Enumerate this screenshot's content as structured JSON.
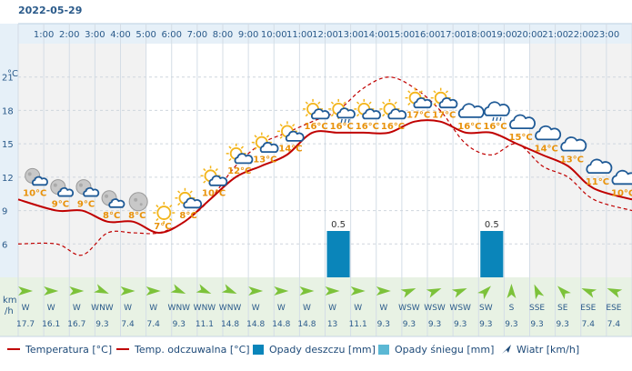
{
  "date": "2022-05-29",
  "colors": {
    "temperature": "#c00000",
    "feels_like": "#c00000",
    "rain": "#0a85ba",
    "snow": "#5bb8d4",
    "wind_arrow": "#7cc23a",
    "temp_label": "#e8920b",
    "plot_bg": "#f2f2f2",
    "header_bg": "#e6f0f8",
    "wind_bg": "#e8f2e4"
  },
  "chart_data": {
    "type": "line",
    "x_labels": [
      "1:00",
      "2:00",
      "3:00",
      "4:00",
      "5:00",
      "6:00",
      "7:00",
      "8:00",
      "9:00",
      "10:00",
      "11:00",
      "12:00",
      "13:00",
      "14:00",
      "15:00",
      "16:00",
      "17:00",
      "18:00",
      "19:00",
      "20:00",
      "21:00",
      "22:00",
      "23:00"
    ],
    "ylabel": "°C",
    "y_ticks": [
      21,
      18,
      15,
      12,
      9,
      6
    ],
    "ylim": [
      3,
      24
    ],
    "grid": true,
    "series": [
      {
        "name": "Temperatura [°C]",
        "style": "solid",
        "values": [
          10,
          9,
          9,
          8,
          8,
          7,
          8,
          10,
          12,
          13,
          14,
          16,
          16,
          16,
          16,
          17,
          17,
          16,
          16,
          15,
          14,
          13,
          11,
          10
        ]
      },
      {
        "name": "Temp. odczuwalna [°C]",
        "style": "dashed",
        "values": [
          6,
          6,
          5,
          7,
          7,
          7,
          8,
          10,
          13,
          15,
          16,
          17,
          18,
          20,
          21,
          20,
          18,
          15,
          14,
          15,
          13,
          12,
          10,
          9
        ]
      }
    ],
    "temp_labels": [
      "10°C",
      "9°C",
      "9°C",
      "8°C",
      "8°C",
      "7°C",
      "8°C",
      "10°C",
      "12°C",
      "13°C",
      "14°C",
      "16°C",
      "16°C",
      "16°C",
      "16°C",
      "17°C",
      "17°C",
      "16°C",
      "16°C",
      "15°C",
      "14°C",
      "13°C",
      "11°C",
      "10°C"
    ],
    "weather_icons": [
      "night-partly-cloudy",
      "night-partly-cloudy",
      "night-partly-cloudy",
      "night-partly-cloudy",
      "moon",
      "sun",
      "partly-cloudy",
      "partly-cloudy",
      "partly-cloudy",
      "partly-cloudy",
      "partly-cloudy",
      "partly-cloudy",
      "partly-cloudy-rain",
      "partly-cloudy",
      "partly-cloudy",
      "partly-cloudy",
      "partly-cloudy",
      "cloudy",
      "cloudy-rain",
      "cloudy",
      "cloudy",
      "cloudy",
      "cloudy",
      "cloudy"
    ],
    "rain": [
      {
        "index": 12,
        "value": 0.5,
        "label": "0.5"
      },
      {
        "index": 18,
        "value": 0.5,
        "label": "0.5"
      }
    ],
    "rain_scale_max": 0.5,
    "wind_unit_lines": [
      "km",
      "/h"
    ],
    "wind": [
      {
        "dir": "W",
        "speed": "17.7"
      },
      {
        "dir": "W",
        "speed": "16.1"
      },
      {
        "dir": "W",
        "speed": "16.7"
      },
      {
        "dir": "WNW",
        "speed": "9.3"
      },
      {
        "dir": "W",
        "speed": "7.4"
      },
      {
        "dir": "W",
        "speed": "7.4"
      },
      {
        "dir": "WNW",
        "speed": "9.3"
      },
      {
        "dir": "WNW",
        "speed": "11.1"
      },
      {
        "dir": "WNW",
        "speed": "14.8"
      },
      {
        "dir": "W",
        "speed": "14.8"
      },
      {
        "dir": "W",
        "speed": "14.8"
      },
      {
        "dir": "W",
        "speed": "14.8"
      },
      {
        "dir": "W",
        "speed": "13"
      },
      {
        "dir": "W",
        "speed": "11.1"
      },
      {
        "dir": "W",
        "speed": "9.3"
      },
      {
        "dir": "WSW",
        "speed": "9.3"
      },
      {
        "dir": "WSW",
        "speed": "9.3"
      },
      {
        "dir": "WSW",
        "speed": "9.3"
      },
      {
        "dir": "SW",
        "speed": "9.3"
      },
      {
        "dir": "S",
        "speed": "9.3"
      },
      {
        "dir": "SSE",
        "speed": "9.3"
      },
      {
        "dir": "SE",
        "speed": "9.3"
      },
      {
        "dir": "ESE",
        "speed": "7.4"
      },
      {
        "dir": "ESE",
        "speed": "7.4"
      }
    ]
  },
  "legend": {
    "temperature": "Temperatura [°C]",
    "feels_like": "Temp. odczuwalna [°C]",
    "rain": "Opady deszczu [mm]",
    "snow": "Opady śniegu [mm]",
    "wind": "Wiatr [km/h]"
  }
}
